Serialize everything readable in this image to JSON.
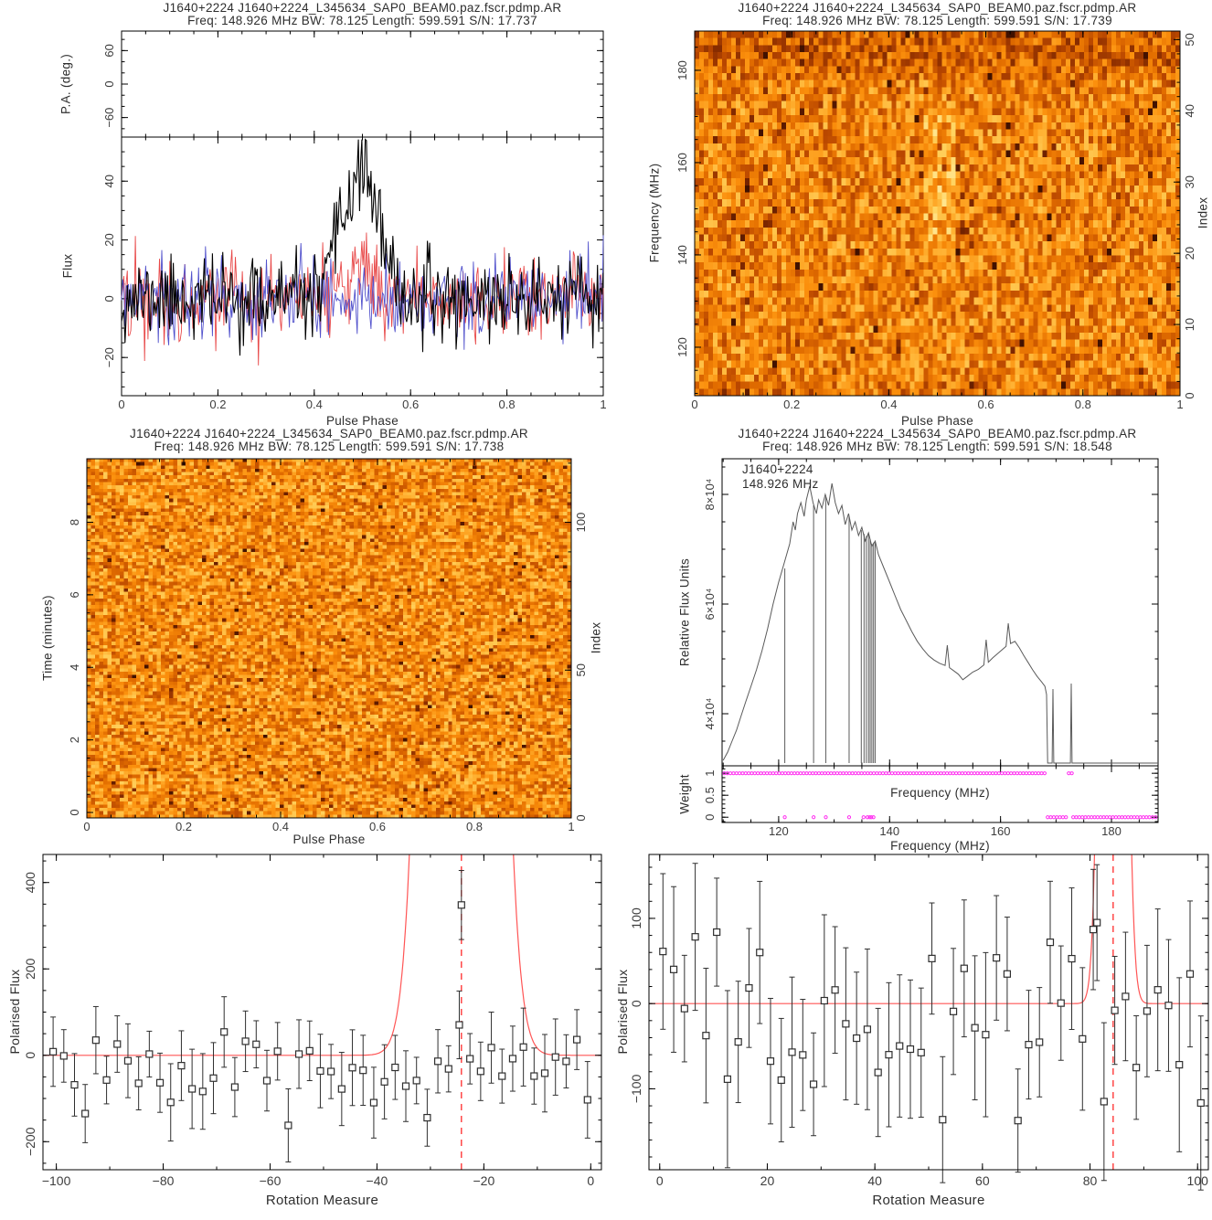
{
  "colors": {
    "axis": "#000000",
    "tick_text": "#3d3d3d",
    "title_text": "#2e2e2e",
    "profile_total": "#000000",
    "profile_red": "#e84848",
    "profile_blue": "#5252cc",
    "bandpass_line": "#5a5a5a",
    "notch_line": "#6a6a6a",
    "weight_dot": "#ff2ef0",
    "fit_curve": "#ff5555",
    "best_rm_line": "#ff2a2a",
    "marker": "#2f2f2f",
    "heat_palette": [
      [
        0.0,
        "#3a0e00"
      ],
      [
        0.18,
        "#7c2600"
      ],
      [
        0.35,
        "#b84600"
      ],
      [
        0.5,
        "#e26d00"
      ],
      [
        0.65,
        "#fb8f0c"
      ],
      [
        0.78,
        "#ffb233"
      ],
      [
        0.9,
        "#ffd562"
      ],
      [
        1.0,
        "#ffeea6"
      ]
    ]
  },
  "chart_data": [
    {
      "id": "profile",
      "type": "line",
      "title": "J1640+2224 J1640+2224_L345634_SAP0_BEAM0.paz.fscr.pdmp.AR",
      "subtitle": "Freq: 148.926 MHz BW: 78.125 Length: 599.591 S/N: 17.737",
      "pa_ylabel": "P.A. (deg.)",
      "pa_ylim": [
        -95,
        95
      ],
      "pa_yticks": [
        -60,
        0,
        60
      ],
      "pa_minor": 20,
      "ylabel": "Flux",
      "xlabel": "Pulse Phase",
      "xlim": [
        0,
        1
      ],
      "xticks": [
        0,
        0.2,
        0.4,
        0.6,
        0.8,
        1
      ],
      "x_minor": 0.05,
      "ylim": [
        -33,
        55
      ],
      "yticks": [
        -20,
        0,
        20,
        40
      ],
      "y_minor": 5,
      "n_bins": 420,
      "noise_sigma": 6.8,
      "peak": {
        "center": 0.503,
        "height": 44,
        "sigma": 0.03,
        "shoulder_center": 0.455,
        "shoulder_height": 14,
        "shoulder_sigma": 0.018
      },
      "red_bump": {
        "center": 0.5,
        "height": 10,
        "sigma": 0.025
      },
      "series": [
        {
          "name": "polarisation-red",
          "seed": 22
        },
        {
          "name": "polarisation-blue",
          "seed": 33
        },
        {
          "name": "total-intensity",
          "seed": 11
        }
      ]
    },
    {
      "id": "frequency-phase",
      "type": "heatmap",
      "title": "J1640+2224 J1640+2224_L345634_SAP0_BEAM0.paz.fscr.pdmp.AR",
      "subtitle": "Freq: 148.926 MHz BW: 78.125 Length: 599.591 S/N: 17.739",
      "xlabel": "Pulse Phase",
      "ylabel": "Frequency (MHz)",
      "ylabel_right": "Index",
      "xlim": [
        0,
        1
      ],
      "xticks": [
        0,
        0.2,
        0.4,
        0.6,
        0.8,
        1
      ],
      "x_minor": 0.05,
      "ylim": [
        109.5,
        188.5
      ],
      "yticks": [
        120,
        140,
        160,
        180
      ],
      "y_minor": 5,
      "ylim_right": [
        0,
        51.2
      ],
      "yticks_right": [
        0,
        10,
        20,
        30,
        40,
        50
      ],
      "y_minor_right": 2,
      "grid_cols": 106,
      "grid_rows": 52,
      "seed": 7,
      "base_level": 0.6,
      "noise_amp": 0.5,
      "dark_fraction": 0.03,
      "hotspot": {
        "phase": 0.505,
        "phase_halfwidth": 0.035,
        "freq_min": 143,
        "freq_max": 172,
        "boost": 0.12
      }
    },
    {
      "id": "time-phase",
      "type": "heatmap",
      "title": "J1640+2224 J1640+2224_L345634_SAP0_BEAM0.paz.fscr.pdmp.AR",
      "subtitle": "Freq: 148.926 MHz BW: 78.125 Length: 599.591 S/N: 17.738",
      "xlabel": "Pulse Phase",
      "ylabel": "Time (minutes)",
      "ylabel_right": "Index",
      "xlim": [
        0,
        1
      ],
      "xticks": [
        0,
        0.2,
        0.4,
        0.6,
        0.8,
        1
      ],
      "x_minor": 0.05,
      "ylim": [
        -0.15,
        9.75
      ],
      "yticks": [
        0,
        2,
        4,
        6,
        8
      ],
      "y_minor": 0.5,
      "ylim_right": [
        0,
        121.5
      ],
      "yticks_right": [
        0,
        50,
        100
      ],
      "y_minor_right": 10,
      "grid_cols": 118,
      "grid_rows": 108,
      "seed": 19,
      "base_level": 0.63,
      "noise_amp": 0.5,
      "dark_fraction": 0.025
    },
    {
      "id": "bandpass",
      "type": "line",
      "title": "J1640+2224 J1640+2224_L345634_SAP0_BEAM0.paz.fscr.pdmp.AR",
      "subtitle": "Freq: 148.926 MHz BW: 78.125 Length: 599.591 S/N: 18.548",
      "annotation_line1": "J1640+2224",
      "annotation_line2": "148.926 MHz",
      "ylabel": "Relative Flux Units",
      "xlabel": "Frequency (MHz)",
      "weight_ylabel": "Weight",
      "weight_inner_label": "Frequency (MHz)",
      "xlim": [
        109.8,
        188.4
      ],
      "xticks": [
        120,
        140,
        160,
        180
      ],
      "x_minor": 5,
      "ylim": [
        30500,
        86500
      ],
      "yticks": [
        {
          "v": 40000,
          "label": "4×10⁴"
        },
        {
          "v": 60000,
          "label": "6×10⁴"
        },
        {
          "v": 80000,
          "label": "8×10⁴"
        }
      ],
      "y_minor": 5000,
      "floor": 31000,
      "curve": [
        [
          110,
          31500
        ],
        [
          110.8,
          33000
        ],
        [
          111.6,
          35000
        ],
        [
          112.4,
          37000
        ],
        [
          113.2,
          39500
        ],
        [
          114,
          42000
        ],
        [
          115,
          45000
        ],
        [
          116,
          48000
        ],
        [
          117,
          51500
        ],
        [
          118,
          55500
        ],
        [
          119,
          60000
        ],
        [
          120,
          64000
        ],
        [
          121,
          67500
        ],
        [
          122,
          71000
        ],
        [
          122.6,
          75000
        ],
        [
          123,
          73500
        ],
        [
          123.4,
          76500
        ],
        [
          124,
          78500
        ],
        [
          124.6,
          76000
        ],
        [
          125,
          79000
        ],
        [
          125.6,
          81500
        ],
        [
          126.2,
          78500
        ],
        [
          126.8,
          76500
        ],
        [
          127.2,
          79000
        ],
        [
          127.8,
          77500
        ],
        [
          128.4,
          80000
        ],
        [
          129,
          78000
        ],
        [
          129.6,
          82000
        ],
        [
          130.2,
          78500
        ],
        [
          130.8,
          76500
        ],
        [
          131.4,
          78000
        ],
        [
          132,
          74500
        ],
        [
          132.6,
          76500
        ],
        [
          133.2,
          73500
        ],
        [
          133.8,
          75000
        ],
        [
          134.4,
          72500
        ],
        [
          135,
          74000
        ],
        [
          135.6,
          71500
        ],
        [
          136.2,
          73000
        ],
        [
          136.8,
          70500
        ],
        [
          137.4,
          71500
        ],
        [
          138,
          69000
        ],
        [
          139,
          66500
        ],
        [
          140,
          64000
        ],
        [
          141,
          61500
        ],
        [
          142,
          59000
        ],
        [
          143,
          57000
        ],
        [
          144,
          55000
        ],
        [
          145,
          53200
        ],
        [
          146,
          51800
        ],
        [
          147,
          50600
        ],
        [
          148,
          49800
        ],
        [
          149,
          49200
        ],
        [
          150,
          48800
        ],
        [
          150.4,
          52500
        ],
        [
          150.8,
          48400
        ],
        [
          151.6,
          47800
        ],
        [
          152.4,
          47200
        ],
        [
          153.2,
          46200
        ],
        [
          154,
          46800
        ],
        [
          155,
          47600
        ],
        [
          156,
          48100
        ],
        [
          157,
          48900
        ],
        [
          157.4,
          53500
        ],
        [
          157.8,
          49400
        ],
        [
          158.6,
          50200
        ],
        [
          159.4,
          50900
        ],
        [
          160.2,
          51600
        ],
        [
          161,
          52300
        ],
        [
          161.4,
          56500
        ],
        [
          161.8,
          52800
        ],
        [
          162.6,
          53200
        ],
        [
          163.4,
          52000
        ],
        [
          164.2,
          50600
        ],
        [
          165,
          49300
        ],
        [
          165.8,
          48000
        ],
        [
          166.6,
          46800
        ],
        [
          167.4,
          45800
        ],
        [
          168,
          45000
        ],
        [
          168.3,
          43500
        ],
        [
          168.5,
          31000
        ],
        [
          169.3,
          31000
        ],
        [
          169.45,
          44500
        ],
        [
          169.6,
          31000
        ],
        [
          172.6,
          31000
        ],
        [
          172.75,
          45500
        ],
        [
          172.9,
          31000
        ],
        [
          188.4,
          31000
        ]
      ],
      "notches": [
        [
          121.1,
          66500
        ],
        [
          126.3,
          78000
        ],
        [
          128.5,
          79500
        ],
        [
          132.7,
          76000
        ],
        [
          134.9,
          73500
        ],
        [
          135.4,
          72800
        ],
        [
          135.8,
          72400
        ],
        [
          136.2,
          72800
        ],
        [
          136.5,
          71800
        ],
        [
          136.8,
          71000
        ],
        [
          137.1,
          71200
        ],
        [
          137.4,
          71300
        ]
      ],
      "weight_ylim": [
        -0.12,
        1.17
      ],
      "weight_yticks": [
        {
          "v": 0,
          "label": "0"
        },
        {
          "v": 0.5,
          "label": "0.5"
        },
        {
          "v": 1,
          "label": "1"
        }
      ],
      "weight_y_minor": 0.1,
      "weight_one_ranges": [
        [
          110.2,
          168.3
        ],
        [
          172.3,
          172.9
        ]
      ],
      "weight_zero_ranges": [
        [
          168.5,
          172.1
        ],
        [
          173.1,
          188.3
        ]
      ],
      "weight_zero_points": [
        121.1,
        126.3,
        128.5,
        132.7,
        135.3,
        136.0,
        136.4,
        136.7,
        137.1
      ],
      "dot_spacing": 0.55
    },
    {
      "id": "rm-negative",
      "type": "scatter",
      "ylabel": "Polarised Flux",
      "xlabel": "Rotation Measure",
      "xlim": [
        -102.5,
        2
      ],
      "xticks": [
        -100,
        -80,
        -60,
        -40,
        -20,
        0
      ],
      "x_minor": 10,
      "ylim": [
        -265,
        465
      ],
      "yticks": [
        -200,
        0,
        200,
        400
      ],
      "y_minor": 50,
      "best_rm": -24.2,
      "fit": {
        "center": -24.2,
        "amplitude": 9000,
        "sigma": 4.0
      },
      "points": {
        "n": 51,
        "x_start": -100.6,
        "x_step": 2.0,
        "seed": 55,
        "y_mean": -38,
        "y_sigma": 52,
        "y_clamp": [
          -168,
          168
        ],
        "err_base": 52,
        "err_spread": 40
      },
      "special_point": {
        "x": -24.2,
        "y": 348,
        "err": 80
      }
    },
    {
      "id": "rm-positive",
      "type": "scatter",
      "ylabel": "Polarised Flux",
      "xlabel": "Rotation Measure",
      "xlim": [
        -2,
        102
      ],
      "xticks": [
        0,
        20,
        40,
        60,
        80,
        100
      ],
      "x_minor": 10,
      "ylim": [
        -195,
        175
      ],
      "yticks": [
        -100,
        0,
        100
      ],
      "y_minor": 20,
      "best_rm": 84.3,
      "fit": {
        "center": 84.3,
        "amplitude": 2500,
        "sigma": 1.5
      },
      "points": {
        "n": 51,
        "x_start": 0.6,
        "x_step": 2.0,
        "seed": 77,
        "y_mean": -12,
        "y_sigma": 58,
        "y_clamp": [
          -158,
          108
        ],
        "err_base": 60,
        "err_spread": 45
      },
      "special_point": {
        "x": 81.3,
        "y": 95,
        "err": 68
      }
    }
  ]
}
